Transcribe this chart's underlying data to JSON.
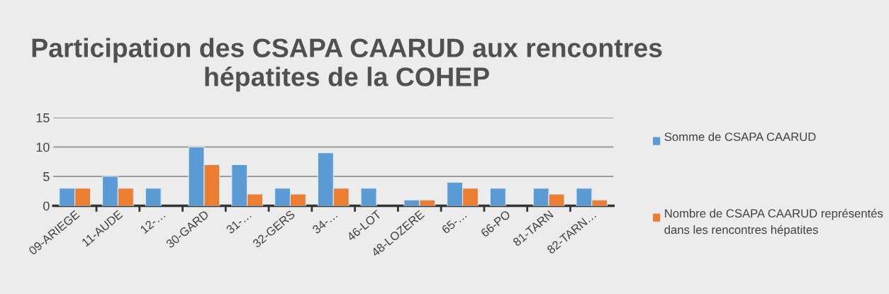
{
  "chart_data": {
    "type": "bar",
    "title": "Participation des CSAPA CAARUD aux rencontres hépatites de la COHEP",
    "categories": [
      "09-ARIEGE",
      "11-AUDE",
      "12-…",
      "30-GARD",
      "31-…",
      "32-GERS",
      "34-…",
      "46-LOT",
      "48-LOZERE",
      "65-…",
      "66-PO",
      "81-TARN",
      "82-TARN…"
    ],
    "series": [
      {
        "name": "Somme de CSAPA CAARUD",
        "color": "#5b9bd5",
        "values": [
          3,
          5,
          3,
          10,
          7,
          3,
          9,
          3,
          1,
          4,
          3,
          3,
          3
        ]
      },
      {
        "name": "Nombre de CSAPA CAARUD représentés dans les rencontres hépatites",
        "color": "#ed7d31",
        "values": [
          3,
          3,
          null,
          7,
          2,
          2,
          3,
          null,
          1,
          3,
          null,
          2,
          1
        ]
      }
    ],
    "ylim": [
      0,
      15
    ],
    "yticks": [
      0,
      5,
      10,
      15
    ],
    "grid": "y",
    "legend": "right"
  }
}
